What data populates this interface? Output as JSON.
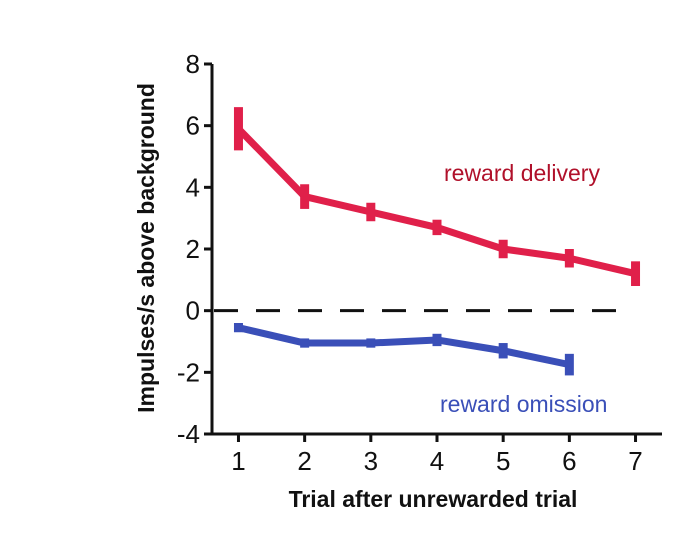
{
  "chart_data": {
    "type": "line",
    "xlabel": "Trial after unrewarded trial",
    "ylabel": "Impulses/s above background",
    "x": [
      1,
      2,
      3,
      4,
      5,
      6,
      7
    ],
    "xlim": [
      0.6,
      7.4
    ],
    "ylim": [
      -4,
      8
    ],
    "yticks": [
      8,
      6,
      4,
      2,
      0,
      -2,
      -4
    ],
    "reference_line": {
      "y": 0,
      "style": "dashed"
    },
    "grid": false,
    "series": [
      {
        "name": "reward delivery",
        "color": "#e0204a",
        "label_color": "#b0102a",
        "x": [
          1,
          2,
          3,
          4,
          5,
          6,
          7
        ],
        "values": [
          5.9,
          3.7,
          3.2,
          2.7,
          2.0,
          1.7,
          1.2
        ],
        "error": [
          0.7,
          0.4,
          0.3,
          0.25,
          0.3,
          0.3,
          0.4
        ]
      },
      {
        "name": "reward omission",
        "color": "#3a4fb8",
        "label_color": "#3a4fb8",
        "x": [
          1,
          2,
          3,
          4,
          5,
          6
        ],
        "values": [
          -0.55,
          -1.05,
          -1.05,
          -0.95,
          -1.3,
          -1.75
        ],
        "error": [
          0.15,
          0.15,
          0.15,
          0.2,
          0.25,
          0.35
        ]
      }
    ]
  }
}
